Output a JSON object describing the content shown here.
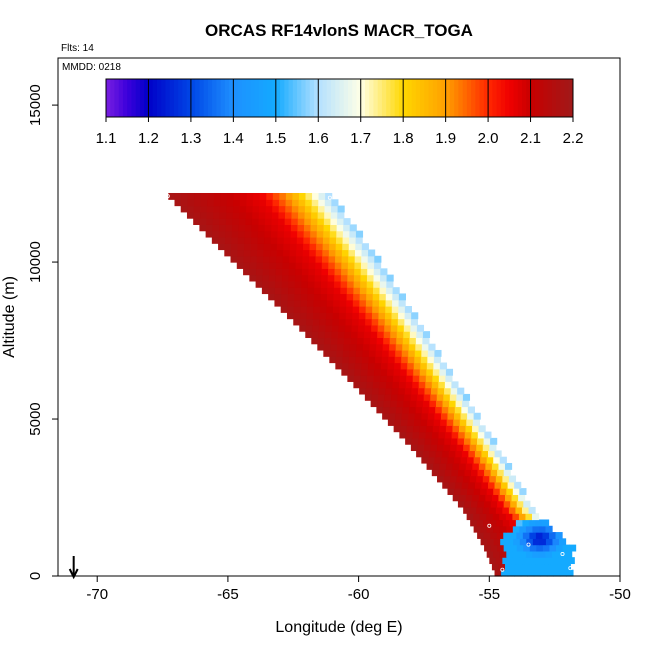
{
  "chart_data": {
    "type": "heatmap",
    "title": "ORCAS RF14vlonS MACR_TOGA",
    "flights_label": "Flts: 14",
    "date_label": "MMDD: 0218",
    "xlabel": "Longitude (deg E)",
    "ylabel": "Altitude (m)",
    "xlim": [
      -71.5,
      -50
    ],
    "ylim": [
      0,
      16500
    ],
    "x_ticks": [
      -70,
      -65,
      -60,
      -55,
      -50
    ],
    "x_tick_labels": [
      "-70",
      "-65",
      "-60",
      "-55",
      "-50"
    ],
    "y_ticks": [
      0,
      5000,
      10000,
      15000
    ],
    "y_tick_labels": [
      "0",
      "5000",
      "10000",
      "15000"
    ],
    "colorbar": {
      "min": 1.1,
      "max": 2.2,
      "ticks": [
        1.1,
        1.2,
        1.3,
        1.4,
        1.5,
        1.6,
        1.7,
        1.8,
        1.9,
        2.0,
        2.1,
        2.2
      ],
      "tick_labels": [
        "1.1",
        "1.2",
        "1.3",
        "1.4",
        "1.5",
        "1.6",
        "1.7",
        "1.8",
        "1.9",
        "2.0",
        "2.1",
        "2.2"
      ],
      "colors": [
        "#7a1fe0",
        "#0000c8",
        "#1e90ff",
        "#ffffff",
        "#ffd700",
        "#ff8c00",
        "#ff0000",
        "#a01414"
      ]
    },
    "band_profile": [
      {
        "alt": 12100,
        "lon_west": -67.4,
        "lon_east": -61.2
      },
      {
        "alt": 10000,
        "lon_west": -64.9,
        "lon_east": -59.4
      },
      {
        "alt": 8000,
        "lon_west": -62.5,
        "lon_east": -57.8
      },
      {
        "alt": 6000,
        "lon_west": -60.2,
        "lon_east": -56.3
      },
      {
        "alt": 4000,
        "lon_west": -58.0,
        "lon_east": -54.8
      },
      {
        "alt": 2000,
        "lon_west": -56.0,
        "lon_east": -53.4
      },
      {
        "alt": 800,
        "lon_west": -55.2,
        "lon_east": -51.9
      },
      {
        "alt": 0,
        "lon_west": -54.8,
        "lon_east": -51.9
      }
    ],
    "low_value_pocket": {
      "lon": -53.2,
      "alt": 1100,
      "value": 1.2
    },
    "aircraft_start_lon": -70.9
  }
}
